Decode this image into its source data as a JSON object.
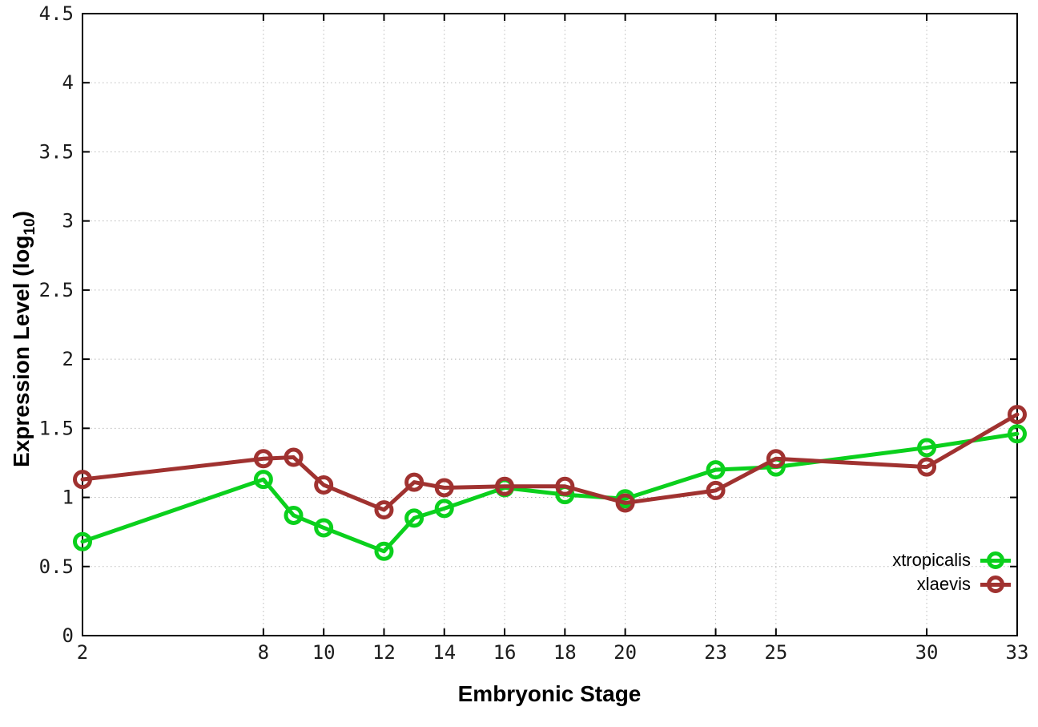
{
  "figure": {
    "background": "#ffffff",
    "axis_color": "#000000",
    "grid_color": "#b8b8b8",
    "tick_label_color": "#1c1c1c"
  },
  "axes": {
    "x_label": "Embryonic Stage",
    "y_label_main": "Expression Level (log",
    "y_label_sub": "10",
    "y_label_end": ")"
  },
  "chart_data": {
    "type": "line",
    "title": "",
    "xlabel": "Embryonic Stage",
    "ylabel": "Expression Level (log10)",
    "grid": "dotted",
    "legend_position": "inside-bottom-right",
    "xlim": [
      2,
      33
    ],
    "ylim": [
      0,
      4.5
    ],
    "x_ticks": [
      2,
      8,
      10,
      12,
      14,
      16,
      18,
      20,
      23,
      25,
      30,
      33
    ],
    "y_ticks": [
      0,
      0.5,
      1,
      1.5,
      2,
      2.5,
      3,
      3.5,
      4,
      4.5
    ],
    "x": [
      2,
      8,
      9,
      10,
      12,
      13,
      14,
      16,
      18,
      20,
      23,
      25,
      30,
      33
    ],
    "series": [
      {
        "name": "xtropicalis",
        "color": "#0bd01d",
        "values": [
          0.68,
          1.13,
          0.87,
          0.78,
          0.61,
          0.85,
          0.92,
          1.07,
          1.02,
          0.99,
          1.2,
          1.22,
          1.36,
          1.46
        ]
      },
      {
        "name": "xlaevis",
        "color": "#a03230",
        "values": [
          1.13,
          1.28,
          1.29,
          1.09,
          0.91,
          1.11,
          1.07,
          1.08,
          1.08,
          0.96,
          1.05,
          1.28,
          1.22,
          1.6
        ]
      }
    ]
  }
}
